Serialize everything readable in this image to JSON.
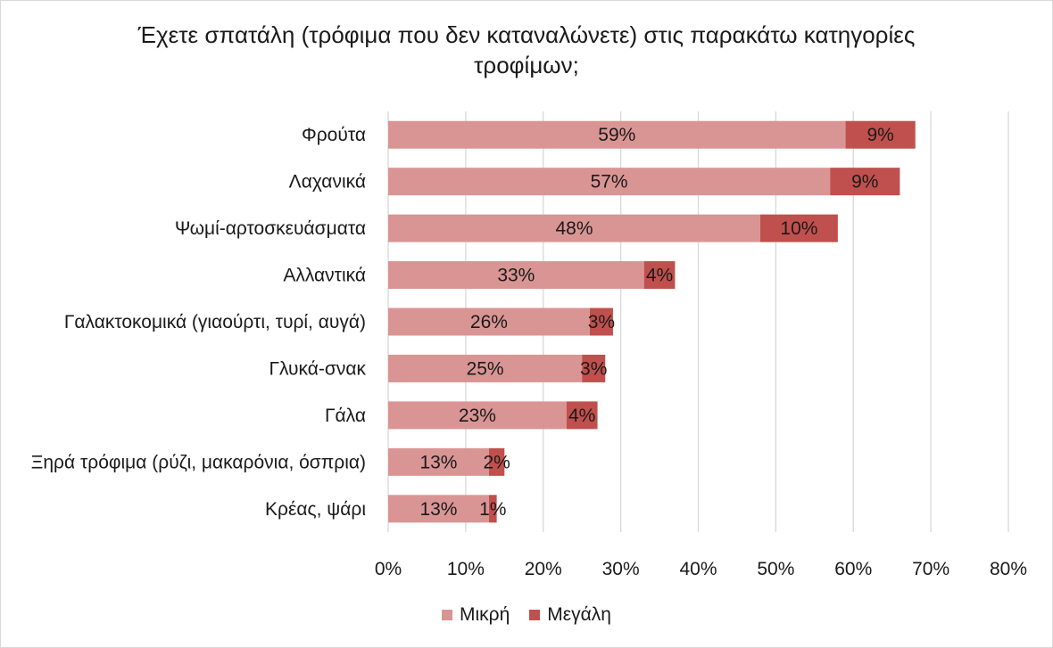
{
  "chart_data": {
    "type": "bar",
    "orientation": "horizontal",
    "stacked": true,
    "title_line1": "Έχετε σπατάλη (τρόφιμα που δεν καταναλώνετε) στις παρακάτω κατηγορίες",
    "title_line2": "τροφίμων;",
    "categories": [
      "Φρούτα",
      "Λαχανικά",
      "Ψωμί-αρτοσκευάσματα",
      "Αλλαντικά",
      "Γαλακτοκομικά (γιαούρτι, τυρί, αυγά)",
      "Γλυκά-σνακ",
      "Γάλα",
      "Ξηρά τρόφιμα (ρύζι, μακαρόνια, όσπρια)",
      "Κρέας, ψάρι"
    ],
    "series": [
      {
        "name": "Μικρή",
        "color": "#d99594",
        "values": [
          59,
          57,
          48,
          33,
          26,
          25,
          23,
          13,
          13
        ],
        "labels": [
          "59%",
          "57%",
          "48%",
          "33%",
          "26%",
          "25%",
          "23%",
          "13%",
          "13%"
        ]
      },
      {
        "name": "Μεγάλη",
        "color": "#c0504d",
        "values": [
          9,
          9,
          10,
          4,
          3,
          3,
          4,
          2,
          1
        ],
        "labels": [
          "9%",
          "9%",
          "10%",
          "4%",
          "3%",
          "3%",
          "4%",
          "2%",
          "1%"
        ]
      }
    ],
    "xlim": [
      0,
      80
    ],
    "xticks": [
      "0%",
      "10%",
      "20%",
      "30%",
      "40%",
      "50%",
      "60%",
      "70%",
      "80%"
    ],
    "grid": true,
    "legend_position": "bottom"
  }
}
